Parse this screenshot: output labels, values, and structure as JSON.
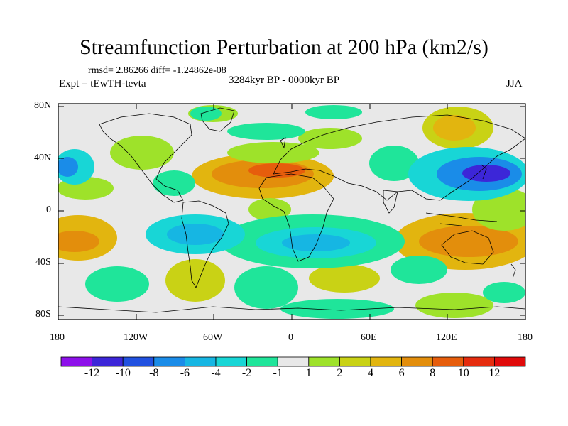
{
  "title": "Streamfunction Perturbation at 200 hPa (km2/s)",
  "stats": "rmsd= 2.86266 diff= -1.24862e-08",
  "experiment": "Expt = tEwTH-tevta",
  "period": "3284kyr BP - 0000kyr BP",
  "season": "JJA",
  "lat_labels": [
    "80N",
    "40N",
    "0",
    "40S",
    "80S"
  ],
  "lon_labels": [
    "180",
    "120W",
    "60W",
    "0",
    "60E",
    "120E",
    "180"
  ],
  "colorbar": {
    "labels": [
      "-12",
      "-10",
      "-8",
      "-6",
      "-4",
      "-2",
      "-1",
      "1",
      "2",
      "4",
      "6",
      "8",
      "10",
      "12"
    ],
    "colors": [
      "#8d10ea",
      "#3c26d8",
      "#2151e0",
      "#1a8ce8",
      "#16b6e3",
      "#18d6d6",
      "#1fe59a",
      "#e8e8e8",
      "#9ee22a",
      "#c9d215",
      "#e2b50f",
      "#e38e0c",
      "#e65d0c",
      "#e52c0e",
      "#e00a0a"
    ]
  }
}
